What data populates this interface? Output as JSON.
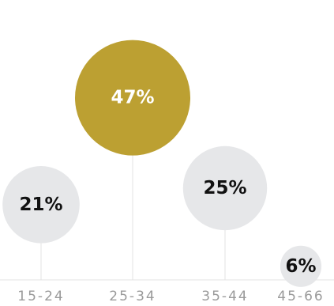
{
  "chart_data": {
    "type": "bubble",
    "title": "",
    "xlabel": "",
    "ylabel": "",
    "categories": [
      "15-24",
      "25-34",
      "35-44",
      "45-66"
    ],
    "series": [
      {
        "values": [
          21,
          47,
          25,
          6
        ],
        "labels": [
          "21%",
          "47%",
          "25%",
          "6%"
        ],
        "highlight_index": 1
      }
    ],
    "grid": false,
    "legend": "none"
  },
  "colors": {
    "bubble": "#e6e7e9",
    "highlight": "#bca032",
    "label": "#111111",
    "highlight_label": "#ffffff",
    "stem": "#e3e3e3",
    "baseline": "#e3e3e3",
    "tick_label": "#9a9a9a"
  }
}
